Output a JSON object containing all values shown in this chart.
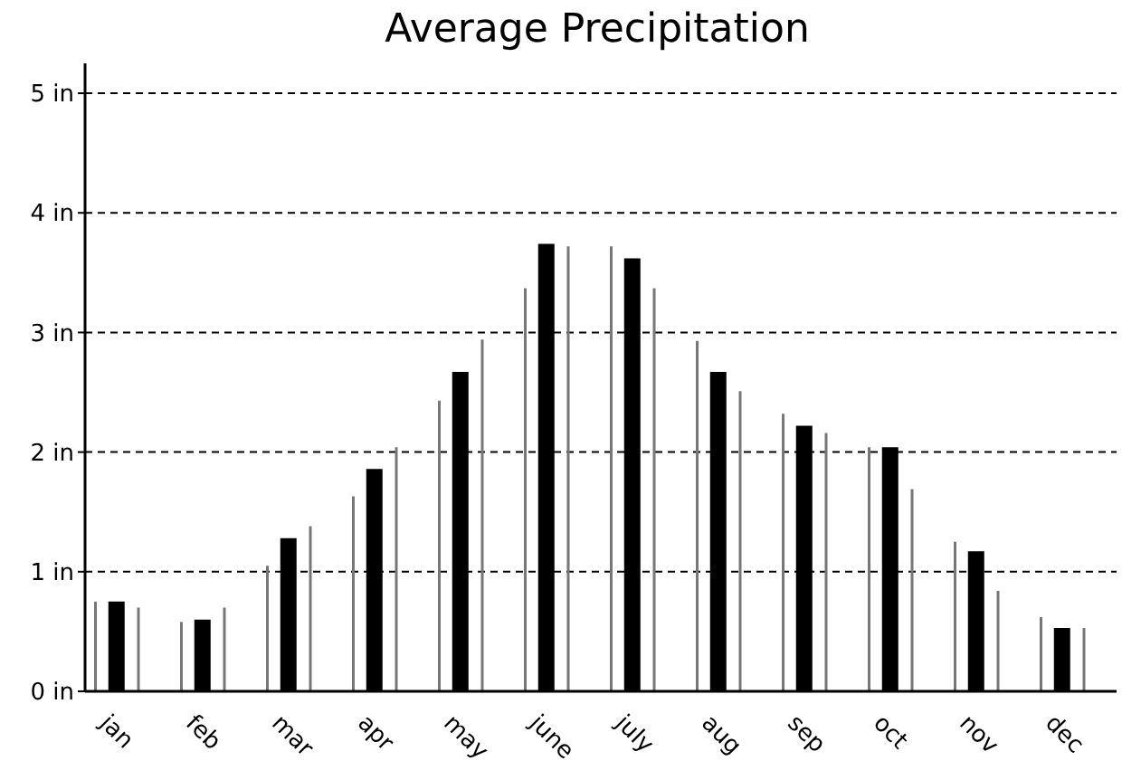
{
  "chart_data": {
    "type": "bar",
    "title": "Average Precipitation",
    "categories": [
      null,
      "jan",
      null,
      null,
      null,
      "feb",
      null,
      null,
      null,
      "mar",
      null,
      null,
      null,
      "apr",
      null,
      null,
      null,
      "may",
      null,
      null,
      null,
      "june",
      null,
      null,
      null,
      "july",
      null,
      null,
      null,
      "aug",
      null,
      null,
      null,
      "sep",
      null,
      null,
      null,
      "oct",
      null,
      null,
      null,
      "nov",
      null,
      null,
      null,
      "dec",
      null,
      null
    ],
    "series": [
      {
        "color": "#000000",
        "values": [
          null,
          0.75,
          null,
          null,
          null,
          0.6,
          null,
          null,
          null,
          1.28,
          null,
          null,
          null,
          1.86,
          null,
          null,
          null,
          2.67,
          null,
          null,
          null,
          3.74,
          null,
          null,
          null,
          3.62,
          null,
          null,
          null,
          2.67,
          null,
          null,
          null,
          2.22,
          null,
          null,
          null,
          2.04,
          null,
          null,
          null,
          1.17,
          null,
          null,
          null,
          0.53,
          null,
          null
        ]
      },
      {
        "type": "bar",
        "color": "#777777",
        "values": [
          0.75,
          null,
          0.7,
          null,
          0.58,
          null,
          0.7,
          null,
          1.05,
          null,
          1.38,
          null,
          1.63,
          null,
          2.04,
          null,
          2.43,
          null,
          2.94,
          null,
          3.37,
          null,
          3.72,
          null,
          3.72,
          null,
          3.37,
          null,
          2.93,
          null,
          2.51,
          null,
          2.32,
          null,
          2.16,
          null,
          2.04,
          null,
          1.69,
          null,
          1.25,
          null,
          0.84,
          null,
          0.62,
          null,
          0.53,
          null
        ]
      }
    ],
    "ylim": [
      0,
      5.25
    ],
    "yticks": [
      {
        "value": 0,
        "label": "0 in"
      },
      {
        "value": 1,
        "label": "1 in"
      },
      {
        "value": 2,
        "label": "2 in"
      },
      {
        "value": 3,
        "label": "3 in"
      },
      {
        "value": 4,
        "label": "4 in"
      },
      {
        "value": 5,
        "label": "5 in"
      }
    ],
    "grid": "y"
  }
}
